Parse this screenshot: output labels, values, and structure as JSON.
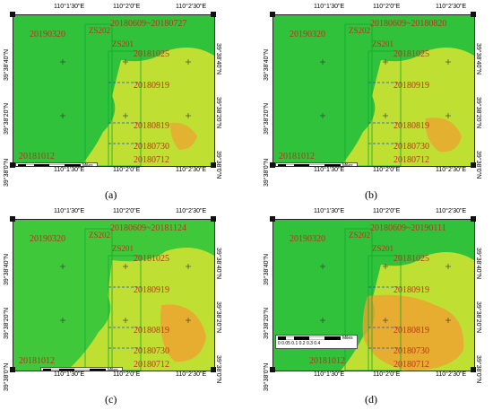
{
  "colors": {
    "green": "#2fc23a",
    "yellow": "#bfe033",
    "orange": "#f0a030",
    "label": "#c22f1f",
    "strip": "#1f4fd1"
  },
  "ticks": {
    "lon": [
      "110°1'30\"E",
      "110°2'0\"E",
      "110°2'30\"E"
    ],
    "lat": [
      "39°38'40\"N",
      "39°38'20\"N",
      "39°38'0\"N"
    ]
  },
  "scalebar": {
    "numbers": "0 0.05 0.1    0.2    0.3    0.4",
    "units": "Miles"
  },
  "strips": {
    "zs202": "ZS202",
    "zs201": "ZS201"
  },
  "panels": [
    {
      "caption": "(a)",
      "range": "20180609~20180727",
      "d1": "20190320",
      "d2": "20181025",
      "d3": "20180919",
      "d4": "20180819",
      "d5": "20180730",
      "d6": "20180712",
      "d7": "20181012"
    },
    {
      "caption": "(b)",
      "range": "20180609~20180820",
      "d1": "20190320",
      "d2": "20181025",
      "d3": "20180919",
      "d4": "20180819",
      "d5": "20180730",
      "d6": "20180712",
      "d7": "20181012"
    },
    {
      "caption": "(c)",
      "range": "20180609~20181124",
      "d1": "20190320",
      "d2": "20181025",
      "d3": "20180919",
      "d4": "20180819",
      "d5": "20180730",
      "d6": "20180712",
      "d7": "20181012"
    },
    {
      "caption": "(d)",
      "range": "20180609~20190111",
      "d1": "20190320",
      "d2": "20181025",
      "d3": "20180919",
      "d4": "20180819",
      "d5": "20180730",
      "d6": "20180712",
      "d7": "20181012"
    }
  ]
}
